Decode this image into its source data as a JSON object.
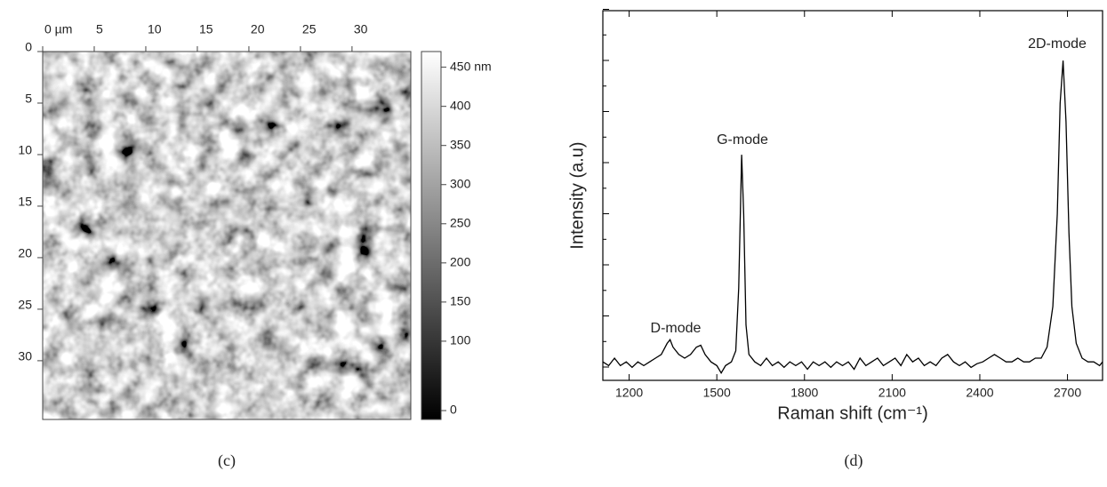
{
  "chart_data": [
    {
      "type": "image",
      "xticks": [
        {
          "value": 0,
          "label": "0 µm"
        },
        5,
        10,
        15,
        20,
        25,
        30
      ],
      "xlim": [
        0,
        35.7
      ],
      "yticks": [
        0,
        5,
        10,
        15,
        20,
        25,
        30
      ],
      "ylim": [
        0,
        35.7
      ],
      "colorbar": {
        "lim": [
          0,
          470
        ],
        "ticks": [
          {
            "value": 450,
            "label": "450 nm"
          },
          400,
          350,
          300,
          250,
          200,
          150,
          100,
          0
        ]
      },
      "caption": "(c)"
    },
    {
      "type": "line",
      "xlabel": "Raman shift (cm⁻¹)",
      "ylabel": "Intensity (a.u)",
      "color": "#000000",
      "xlim": [
        1110,
        2820
      ],
      "xticks": [
        1200,
        1500,
        1800,
        2100,
        2400,
        2700
      ],
      "ylim": [
        0,
        100
      ],
      "x": [
        1110,
        1130,
        1150,
        1170,
        1190,
        1210,
        1230,
        1250,
        1270,
        1290,
        1310,
        1330,
        1340,
        1350,
        1370,
        1390,
        1410,
        1430,
        1445,
        1460,
        1480,
        1500,
        1515,
        1530,
        1550,
        1565,
        1575,
        1585,
        1592,
        1600,
        1610,
        1630,
        1650,
        1670,
        1690,
        1710,
        1730,
        1750,
        1770,
        1790,
        1810,
        1830,
        1850,
        1870,
        1890,
        1910,
        1930,
        1950,
        1970,
        1990,
        2010,
        2030,
        2050,
        2070,
        2090,
        2110,
        2130,
        2150,
        2170,
        2190,
        2210,
        2230,
        2250,
        2270,
        2290,
        2310,
        2330,
        2350,
        2370,
        2390,
        2410,
        2430,
        2450,
        2470,
        2490,
        2510,
        2530,
        2550,
        2570,
        2590,
        2610,
        2630,
        2650,
        2665,
        2675,
        2685,
        2695,
        2705,
        2715,
        2730,
        2750,
        2770,
        2790,
        2810,
        2820
      ],
      "values": [
        5,
        4,
        6,
        4,
        5,
        3.5,
        5,
        4,
        5,
        6,
        7,
        10,
        11,
        9,
        7,
        6,
        7,
        9,
        9.5,
        7,
        5,
        4,
        2,
        4,
        5,
        8,
        25,
        61,
        45,
        15,
        7,
        5,
        4,
        6,
        4,
        5,
        3.5,
        5,
        4,
        5,
        3,
        5,
        4,
        5,
        3.5,
        5,
        4,
        5,
        3,
        6,
        4,
        5,
        6,
        4,
        5,
        6,
        4,
        7,
        5,
        6,
        4,
        5,
        4,
        6,
        7,
        5,
        4,
        5,
        3.5,
        4.5,
        5,
        6,
        7,
        6,
        5,
        5,
        6,
        5,
        5,
        6,
        6,
        9,
        20,
        45,
        75,
        86.5,
        70,
        40,
        20,
        10,
        6,
        5,
        5,
        4,
        5
      ],
      "annotations": [
        "D-mode",
        "G-mode",
        "2D-mode"
      ],
      "caption": "(d)"
    }
  ]
}
